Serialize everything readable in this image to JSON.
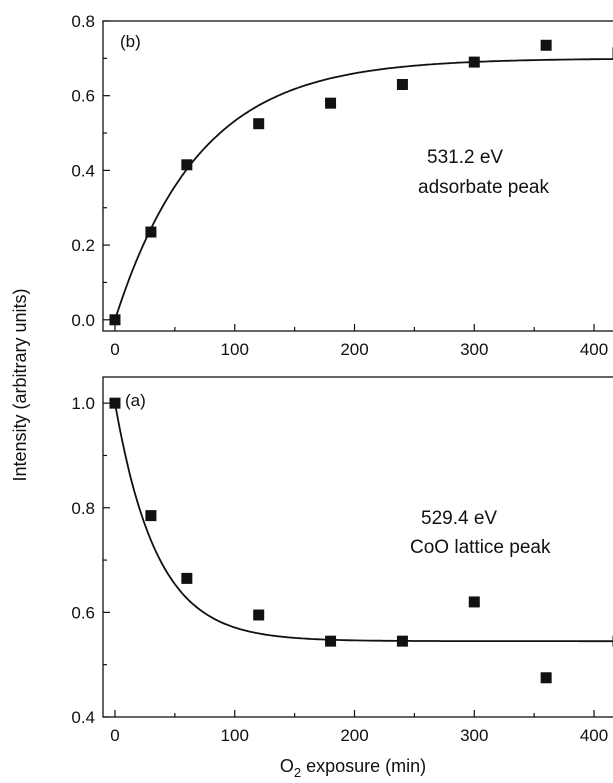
{
  "ylabel": "Intensity (arbitrary units)",
  "xlabel_main": "O",
  "xlabel_sub": "2",
  "xlabel_rest": " exposure (min)",
  "chart_data": [
    {
      "type": "scatter",
      "panel_label": "(b)",
      "annotation_line1": "531.2 eV",
      "annotation_line2": "adsorbate peak",
      "xlim": [
        -10,
        420
      ],
      "ylim": [
        -0.03,
        0.8
      ],
      "xticks": [
        0,
        100,
        200,
        300,
        400
      ],
      "xtick_labels": [
        "0",
        "100",
        "200",
        "300",
        "400"
      ],
      "yticks": [
        0.0,
        0.2,
        0.4,
        0.6,
        0.8
      ],
      "ytick_labels": [
        "0.0",
        "0.2",
        "0.4",
        "0.6",
        "0.8"
      ],
      "points": {
        "x": [
          0,
          30,
          60,
          120,
          180,
          240,
          300,
          360,
          420
        ],
        "y": [
          0.0,
          0.235,
          0.415,
          0.525,
          0.58,
          0.63,
          0.69,
          0.735,
          0.715
        ]
      },
      "fit": {
        "kind": "rise",
        "a": 0.7,
        "tau": 70
      }
    },
    {
      "type": "scatter",
      "panel_label": "(a)",
      "annotation_line1": "529.4 eV",
      "annotation_line2": "CoO lattice peak",
      "xlim": [
        -10,
        420
      ],
      "ylim": [
        0.4,
        1.05
      ],
      "xticks": [
        0,
        100,
        200,
        300,
        400
      ],
      "xtick_labels": [
        "0",
        "100",
        "200",
        "300",
        "400"
      ],
      "yticks": [
        0.4,
        0.6,
        0.8,
        1.0
      ],
      "ytick_labels": [
        "0.4",
        "0.6",
        "0.8",
        "1.0"
      ],
      "points": {
        "x": [
          0,
          30,
          60,
          120,
          180,
          240,
          300,
          360,
          420
        ],
        "y": [
          1.0,
          0.785,
          0.665,
          0.595,
          0.545,
          0.545,
          0.62,
          0.475,
          0.545
        ]
      },
      "fit": {
        "kind": "decay",
        "c": 0.545,
        "a": 0.455,
        "tau": 35
      }
    }
  ]
}
